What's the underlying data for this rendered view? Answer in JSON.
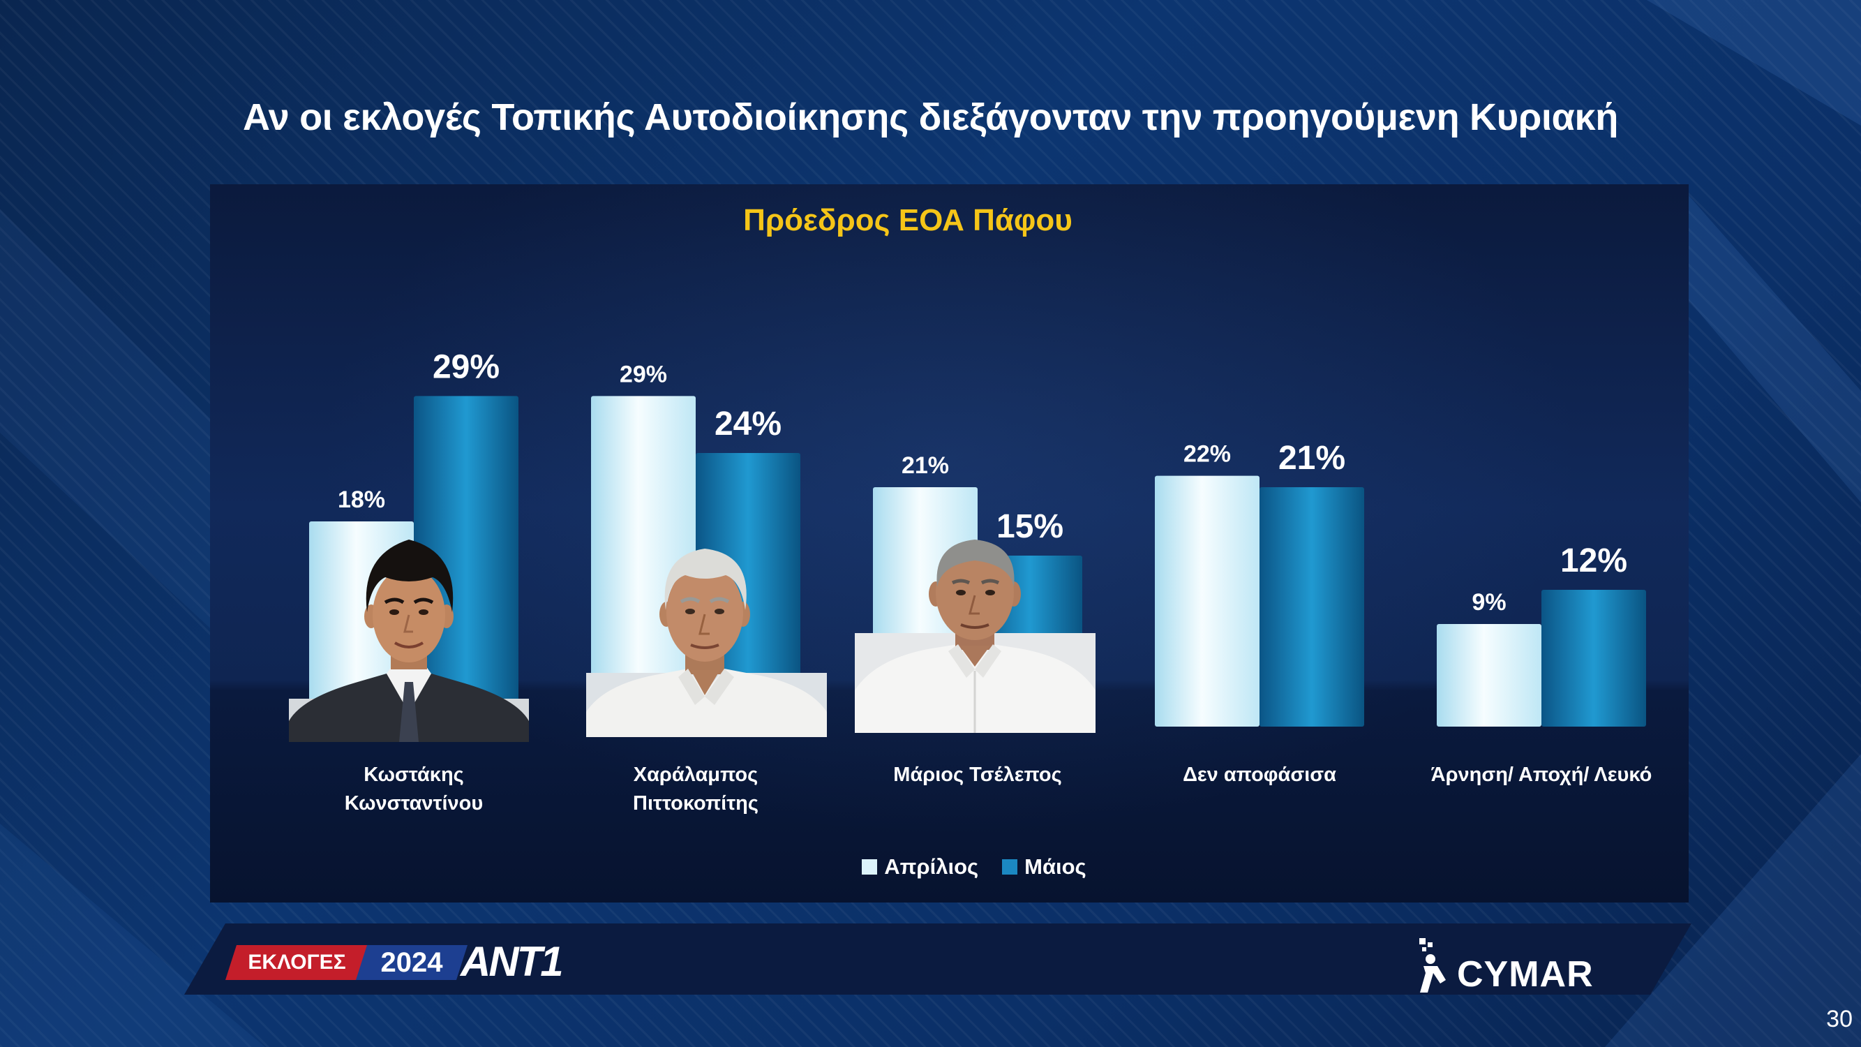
{
  "slide": {
    "title": "Αν οι εκλογές Τοπικής Αυτοδιοίκησης διεξάγονταν την προηγούμενη Κυριακή",
    "page_number": "30"
  },
  "branding": {
    "elections_label": "ΕΚΛΟΓΕΣ",
    "year": "2024",
    "channel_logo": "ANT1",
    "pollster_logo": "CYMAR"
  },
  "colors": {
    "chart_title": "#f5c518",
    "elections_badge": "#c41e2a",
    "year_badge": "#1d3f91"
  },
  "chart_data": {
    "type": "bar",
    "title": "Πρόεδρος ΕΟΑ Πάφου",
    "xlabel": "",
    "ylabel": "",
    "categories": [
      "Κωστάκης\nΚωνσταντίνου",
      "Χαράλαμπος\nΠιττοκοπίτης",
      "Μάριος Τσέλεπος",
      "Δεν αποφάσισα",
      "Άρνηση/ Αποχή/ Λευκό"
    ],
    "series": [
      {
        "name": "Απρίλιος",
        "values": [
          18,
          29,
          21,
          22,
          9
        ],
        "color": "#dcf3fb"
      },
      {
        "name": "Μάιος",
        "values": [
          29,
          24,
          15,
          21,
          12
        ],
        "color": "#1b88c2"
      }
    ],
    "unit": "%",
    "ylim": [
      0,
      30
    ],
    "grid": false,
    "legend": "bottom"
  }
}
